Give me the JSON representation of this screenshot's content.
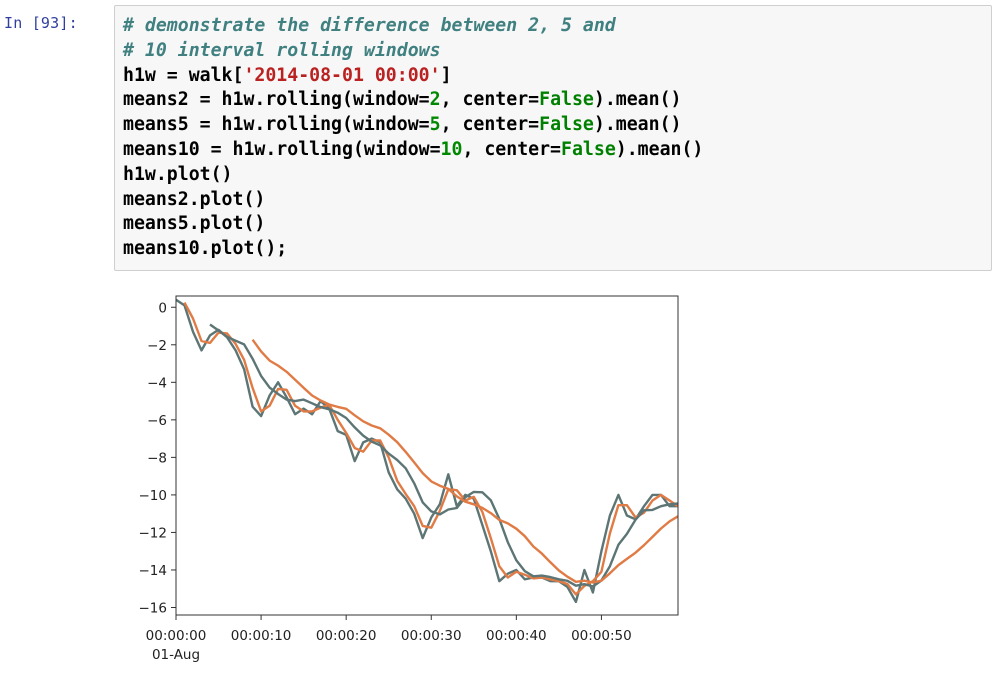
{
  "cell": {
    "prompt": "In [93]:",
    "lines": [
      [
        {
          "t": "cm",
          "v": "# demonstrate the difference between 2, 5 and"
        }
      ],
      [
        {
          "t": "cm",
          "v": "# 10 interval rolling windows"
        }
      ],
      [
        {
          "t": "tx",
          "v": "h1w = walk["
        },
        {
          "t": "st",
          "v": "'2014-08-01 00:00'"
        },
        {
          "t": "tx",
          "v": "]"
        }
      ],
      [
        {
          "t": "tx",
          "v": "means2 = h1w.rolling(window="
        },
        {
          "t": "nu",
          "v": "2"
        },
        {
          "t": "tx",
          "v": ", center="
        },
        {
          "t": "kw",
          "v": "False"
        },
        {
          "t": "tx",
          "v": ").mean()"
        }
      ],
      [
        {
          "t": "tx",
          "v": "means5 = h1w.rolling(window="
        },
        {
          "t": "nu",
          "v": "5"
        },
        {
          "t": "tx",
          "v": ", center="
        },
        {
          "t": "kw",
          "v": "False"
        },
        {
          "t": "tx",
          "v": ").mean()"
        }
      ],
      [
        {
          "t": "tx",
          "v": "means10 = h1w.rolling(window="
        },
        {
          "t": "nu",
          "v": "10"
        },
        {
          "t": "tx",
          "v": ", center="
        },
        {
          "t": "kw",
          "v": "False"
        },
        {
          "t": "tx",
          "v": ").mean()"
        }
      ],
      [
        {
          "t": "tx",
          "v": "h1w.plot()"
        }
      ],
      [
        {
          "t": "tx",
          "v": "means2.plot()"
        }
      ],
      [
        {
          "t": "tx",
          "v": "means5.plot()"
        }
      ],
      [
        {
          "t": "tx",
          "v": "means10.plot();"
        }
      ]
    ]
  },
  "chart_data": {
    "type": "line",
    "title": "",
    "xlabel": "",
    "ylabel": "",
    "x": [
      0,
      1,
      2,
      3,
      4,
      5,
      6,
      7,
      8,
      9,
      10,
      11,
      12,
      13,
      14,
      15,
      16,
      17,
      18,
      19,
      20,
      21,
      22,
      23,
      24,
      25,
      26,
      27,
      28,
      29,
      30,
      31,
      32,
      33,
      34,
      35,
      36,
      37,
      38,
      39,
      40,
      41,
      42,
      43,
      44,
      45,
      46,
      47,
      48,
      49,
      50,
      51,
      52,
      53,
      54,
      55,
      56,
      57,
      58,
      59
    ],
    "xlim": [
      0,
      59
    ],
    "ylim": [
      -16.4,
      0.6
    ],
    "yticks": [
      0,
      -2,
      -4,
      -6,
      -8,
      -10,
      -12,
      -14,
      -16
    ],
    "ytick_labels": [
      "0",
      "−2",
      "−4",
      "−6",
      "−8",
      "−10",
      "−12",
      "−14",
      "−16"
    ],
    "xticks": [
      0,
      10,
      20,
      30,
      40,
      50
    ],
    "xtick_labels": [
      "00:00:00",
      "00:00:10",
      "00:00:20",
      "00:00:30",
      "00:00:40",
      "00:00:50"
    ],
    "xtick_sublabel": "01-Aug",
    "grid": false,
    "series": [
      {
        "color": "#5d7575",
        "values": [
          0.4,
          0.1,
          -1.3,
          -2.3,
          -1.5,
          -1.2,
          -1.6,
          -2.3,
          -3.3,
          -5.3,
          -5.8,
          -4.7,
          -4.0,
          -4.8,
          -5.7,
          -5.4,
          -5.7,
          -5.0,
          -5.4,
          -6.6,
          -6.8,
          -8.2,
          -7.2,
          -7.0,
          -7.2,
          -8.8,
          -9.7,
          -10.2,
          -11.0,
          -12.3,
          -11.2,
          -10.5,
          -8.9,
          -10.6,
          -10.0,
          -10.2,
          -11.6,
          -13.0,
          -14.6,
          -14.2,
          -14.0,
          -14.5,
          -14.4,
          -14.4,
          -14.6,
          -14.6,
          -14.9,
          -15.7,
          -14.0,
          -15.2,
          -13.0,
          -11.1,
          -10.0,
          -11.1,
          -11.3,
          -10.6,
          -10.0,
          -10.0,
          -10.6,
          -10.6
        ]
      },
      {
        "color": "#e07b45",
        "values": [
          null,
          0.25,
          -0.6,
          -1.8,
          -1.9,
          -1.35,
          -1.4,
          -1.95,
          -2.8,
          -4.3,
          -5.55,
          -5.25,
          -4.35,
          -4.4,
          -5.25,
          -5.55,
          -5.55,
          -5.35,
          -5.2,
          -6.0,
          -6.7,
          -7.5,
          -7.7,
          -7.1,
          -7.1,
          -8.0,
          -9.25,
          -9.95,
          -10.6,
          -11.65,
          -11.75,
          -10.85,
          -9.7,
          -9.75,
          -10.3,
          -10.1,
          -10.9,
          -12.3,
          -13.8,
          -14.4,
          -14.1,
          -14.25,
          -14.45,
          -14.4,
          -14.5,
          -14.6,
          -14.75,
          -15.3,
          -14.85,
          -14.6,
          -14.1,
          -12.05,
          -10.55,
          -10.55,
          -11.2,
          -10.95,
          -10.3,
          -10.0,
          -10.3,
          -10.6
        ]
      },
      {
        "color": "#5d7575",
        "values": [
          null,
          null,
          null,
          null,
          -0.92,
          -1.24,
          -1.58,
          -1.78,
          -1.98,
          -2.74,
          -3.66,
          -4.28,
          -4.62,
          -4.92,
          -5.0,
          -4.92,
          -5.12,
          -5.32,
          -5.44,
          -5.62,
          -5.9,
          -6.4,
          -6.84,
          -7.16,
          -7.36,
          -7.8,
          -8.14,
          -8.58,
          -9.38,
          -10.4,
          -10.88,
          -11.04,
          -10.78,
          -10.7,
          -10.12,
          -9.84,
          -9.86,
          -10.28,
          -11.28,
          -12.52,
          -13.48,
          -14.06,
          -14.34,
          -14.3,
          -14.38,
          -14.5,
          -14.58,
          -14.84,
          -14.76,
          -14.88,
          -14.56,
          -13.8,
          -12.66,
          -12.08,
          -11.32,
          -10.82,
          -10.8,
          -10.6,
          -10.5,
          -10.46
        ]
      },
      {
        "color": "#e07b45",
        "values": [
          null,
          null,
          null,
          null,
          null,
          null,
          null,
          null,
          null,
          -1.73,
          -2.35,
          -2.84,
          -3.11,
          -3.44,
          -3.86,
          -4.29,
          -4.7,
          -4.97,
          -5.18,
          -5.31,
          -5.41,
          -5.76,
          -6.08,
          -6.3,
          -6.45,
          -6.79,
          -7.19,
          -7.71,
          -8.27,
          -8.84,
          -9.28,
          -9.51,
          -9.68,
          -10.08,
          -10.36,
          -10.5,
          -10.69,
          -10.97,
          -11.33,
          -11.52,
          -11.8,
          -12.2,
          -12.75,
          -13.13,
          -13.59,
          -14.03,
          -14.36,
          -14.63,
          -14.57,
          -14.67,
          -14.57,
          -14.18,
          -13.74,
          -13.41,
          -13.08,
          -12.68,
          -12.24,
          -11.79,
          -11.41,
          -11.14
        ]
      }
    ]
  }
}
